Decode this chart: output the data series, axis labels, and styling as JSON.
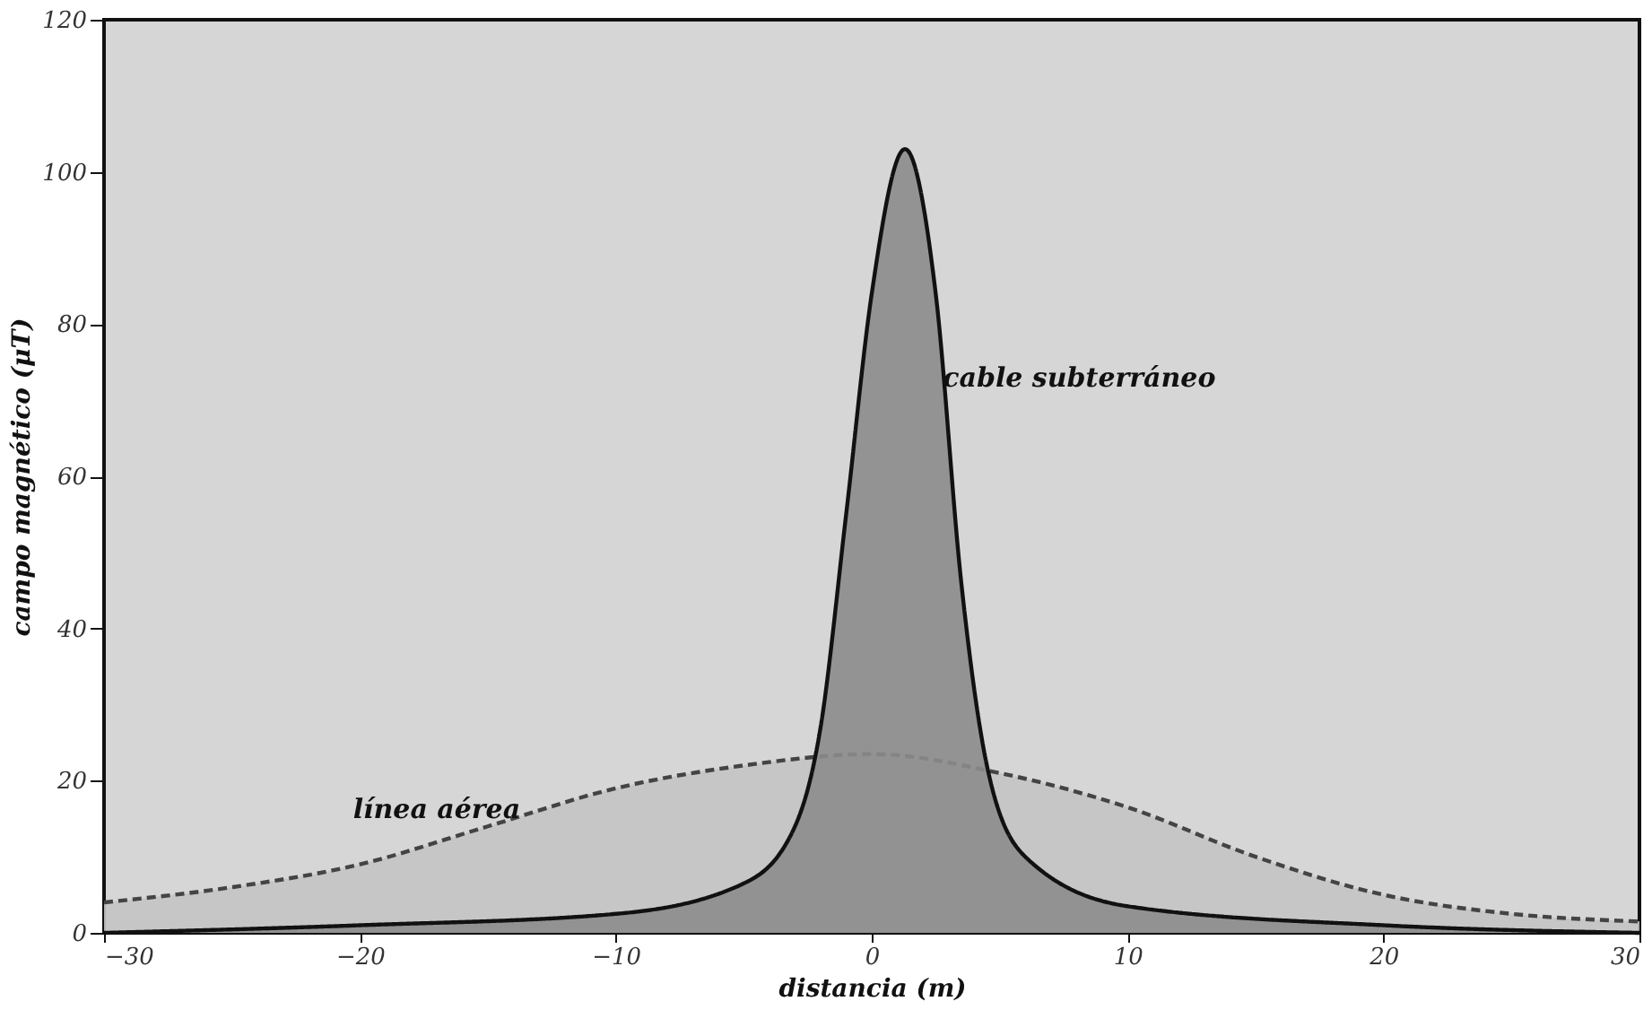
{
  "chart_data": {
    "type": "area",
    "xlabel": "distancia (m)",
    "ylabel": "campo magnético (μT)",
    "xlim": [
      -30,
      30
    ],
    "xticks": [
      -30,
      -20,
      -10,
      0,
      10,
      20,
      30
    ],
    "ylim": [
      0,
      120
    ],
    "yticks": [
      0,
      20,
      40,
      60,
      80,
      100,
      120
    ],
    "grid": false,
    "series": [
      {
        "color": "#c4c4c4",
        "line_style": "dashed",
        "x": [
          -30,
          -25,
          -20,
          -15,
          -10,
          -5,
          0,
          5,
          10,
          15,
          20,
          25,
          30
        ],
        "values": [
          4,
          6,
          9,
          14,
          19,
          22,
          23.5,
          21,
          16.5,
          10,
          5,
          2.5,
          1.5
        ]
      },
      {
        "color": "#8c8c8c",
        "line_style": "solid",
        "x": [
          -30,
          -20,
          -10,
          -5,
          -3,
          -2,
          -1,
          0,
          1.3,
          2.5,
          3.5,
          4.5,
          6,
          10,
          20,
          30
        ],
        "values": [
          0,
          1,
          2.5,
          6.5,
          14,
          27,
          55,
          84,
          103,
          84,
          46,
          22,
          10,
          3.5,
          1,
          0
        ]
      }
    ],
    "annotations": [
      {
        "text": "línea aérea",
        "x": -17,
        "y": 13
      },
      {
        "text": "cable subterráneo",
        "x": 2.5,
        "y": 73
      }
    ]
  }
}
